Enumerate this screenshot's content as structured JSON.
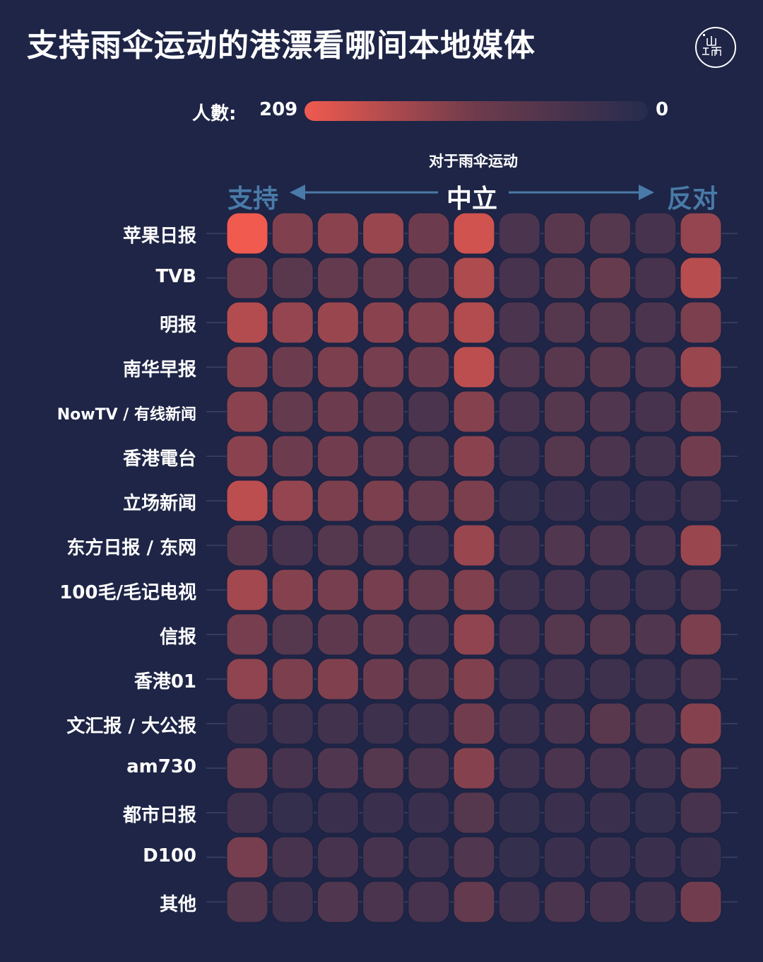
{
  "header": {
    "title": "支持雨伞运动的港漂看哪间本地媒体",
    "logo_text": "端"
  },
  "legend": {
    "label": "人數:",
    "max_label": "209",
    "min_label": "0",
    "color_high": "#f05a4f",
    "color_low": "#262c4e"
  },
  "axis": {
    "title": "对于雨伞运动",
    "left": "支持",
    "center": "中立",
    "right": "反对",
    "side_color": "#4a7aa8"
  },
  "chart_data": {
    "type": "heatmap",
    "title": "支持雨伞运动的港漂看哪间本地媒体",
    "xlabel": "对于雨伞运动",
    "x_ends": [
      "支持",
      "中立",
      "反对"
    ],
    "color_range": [
      0,
      209
    ],
    "rows": [
      "苹果日报",
      "TVB",
      "明报",
      "南华早报",
      "NowTV / 有线新闻",
      "香港電台",
      "立场新闻",
      "东方日报 / 东网",
      "100毛/毛记电视",
      "信报",
      "香港01",
      "文汇报 / 大公报",
      "am730",
      "都市日报",
      "D100",
      "其他"
    ],
    "values": [
      [
        209,
        100,
        110,
        125,
        80,
        180,
        45,
        60,
        55,
        40,
        120
      ],
      [
        80,
        60,
        70,
        75,
        65,
        145,
        40,
        60,
        75,
        40,
        155
      ],
      [
        150,
        120,
        125,
        110,
        100,
        150,
        45,
        55,
        55,
        45,
        95
      ],
      [
        110,
        80,
        95,
        90,
        80,
        160,
        50,
        60,
        60,
        50,
        125
      ],
      [
        110,
        70,
        80,
        65,
        45,
        105,
        40,
        55,
        50,
        40,
        80
      ],
      [
        110,
        80,
        85,
        70,
        55,
        110,
        30,
        55,
        45,
        35,
        85
      ],
      [
        160,
        120,
        95,
        95,
        70,
        95,
        20,
        25,
        25,
        25,
        30
      ],
      [
        60,
        40,
        55,
        55,
        40,
        125,
        35,
        50,
        45,
        40,
        125
      ],
      [
        135,
        105,
        90,
        90,
        70,
        100,
        30,
        40,
        35,
        30,
        45
      ],
      [
        90,
        55,
        65,
        75,
        50,
        115,
        40,
        55,
        55,
        50,
        95
      ],
      [
        115,
        95,
        100,
        80,
        60,
        100,
        30,
        35,
        30,
        30,
        45
      ],
      [
        25,
        30,
        35,
        30,
        30,
        85,
        30,
        45,
        60,
        45,
        105
      ],
      [
        70,
        40,
        50,
        55,
        45,
        105,
        30,
        45,
        40,
        35,
        75
      ],
      [
        35,
        20,
        25,
        25,
        25,
        55,
        20,
        25,
        25,
        20,
        40
      ],
      [
        90,
        40,
        40,
        40,
        30,
        50,
        20,
        25,
        25,
        25,
        25
      ],
      [
        55,
        35,
        50,
        45,
        40,
        70,
        35,
        45,
        40,
        35,
        85
      ]
    ]
  }
}
